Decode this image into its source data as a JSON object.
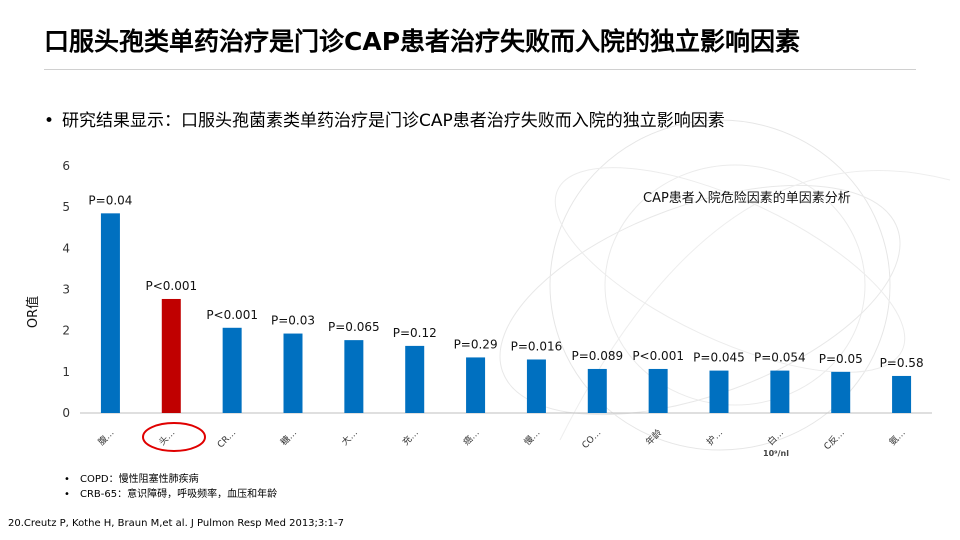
{
  "slide": {
    "title": "口服头孢类单药治疗是门诊CAP患者治疗失败而入院的独立影响因素",
    "bullet": "研究结果显示：口服头孢菌素类单药治疗是门诊CAP患者治疗失败而入院的独立影响因素",
    "notes": [
      "COPD：慢性阻塞性肺疾病",
      "CRB-65：意识障碍，呼吸频率，血压和年龄"
    ],
    "reference": "20.Creutz P, Kothe H, Braun M,et al. J Pulmon Resp Med 2013;3:1-7",
    "bullet_symbol": "•"
  },
  "chart_data": {
    "type": "bar",
    "annotation": "CAP患者入院危险因素的单因素分析",
    "ylabel": "OR值",
    "ylim": [
      0,
      6
    ],
    "yticks": [
      "0",
      "1",
      "2",
      "3",
      "4",
      "5",
      "6"
    ],
    "grid": false,
    "categories": [
      "腹…",
      "头…",
      "CR…",
      "糖…",
      "大…",
      "充…",
      "癌…",
      "慢…",
      "CO…",
      "年龄",
      "护…",
      "白…",
      "C反…",
      "氨…"
    ],
    "values": [
      4.85,
      2.77,
      2.07,
      1.93,
      1.77,
      1.63,
      1.35,
      1.3,
      1.07,
      1.07,
      1.03,
      1.03,
      1.0,
      0.9
    ],
    "data_labels": [
      "P=0.04",
      "P<0.001",
      "P<0.001",
      "P=0.03",
      "P=0.065",
      "P=0.12",
      "P=0.29",
      "P=0.016",
      "P=0.089",
      "P<0.001",
      "P=0.045",
      "P=0.054",
      "P=0.05",
      "P=0.58"
    ],
    "highlight_index": 1,
    "extra_label": "10⁹/nl",
    "colors": {
      "bar": "#0070C0",
      "highlight": "#C00000",
      "circle": "#E00000"
    }
  }
}
